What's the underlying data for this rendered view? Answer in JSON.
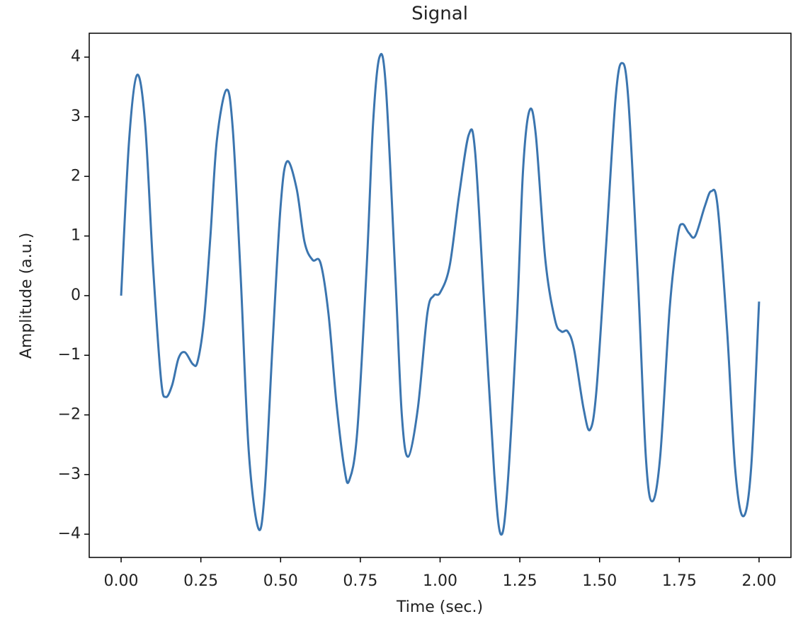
{
  "chart_data": {
    "type": "line",
    "title": "Signal",
    "x_label": "Time (sec.)",
    "y_label": "Amplitude (a.u.)",
    "x": [
      0.0,
      0.025,
      0.05,
      0.075,
      0.1,
      0.125,
      0.14,
      0.16,
      0.18,
      0.2,
      0.225,
      0.24,
      0.26,
      0.28,
      0.3,
      0.33,
      0.35,
      0.375,
      0.4,
      0.43,
      0.45,
      0.475,
      0.5,
      0.52,
      0.55,
      0.575,
      0.6,
      0.625,
      0.65,
      0.675,
      0.7,
      0.715,
      0.74,
      0.77,
      0.79,
      0.81,
      0.83,
      0.86,
      0.88,
      0.9,
      0.93,
      0.96,
      0.98,
      1.0,
      1.03,
      1.06,
      1.09,
      1.11,
      1.14,
      1.17,
      1.19,
      1.21,
      1.24,
      1.26,
      1.28,
      1.3,
      1.33,
      1.36,
      1.38,
      1.4,
      1.42,
      1.45,
      1.47,
      1.49,
      1.52,
      1.55,
      1.57,
      1.59,
      1.62,
      1.645,
      1.665,
      1.69,
      1.72,
      1.745,
      1.76,
      1.78,
      1.8,
      1.83,
      1.85,
      1.87,
      1.9,
      1.925,
      1.95,
      1.975,
      2.0
    ],
    "series": [
      {
        "name": "signal",
        "color": "#3b75af",
        "values": [
          0,
          2.6,
          3.7,
          2.9,
          0.5,
          -1.4,
          -1.7,
          -1.5,
          -1.05,
          -0.95,
          -1.15,
          -1.1,
          -0.4,
          1.0,
          2.6,
          3.45,
          2.8,
          0.3,
          -2.6,
          -3.9,
          -3.3,
          -0.8,
          1.5,
          2.25,
          1.8,
          0.9,
          0.6,
          0.55,
          -0.3,
          -1.8,
          -2.9,
          -3.1,
          -2.3,
          0.5,
          2.9,
          4.0,
          3.5,
          0.3,
          -2.0,
          -2.7,
          -1.9,
          -0.3,
          0.0,
          0.05,
          0.5,
          1.7,
          2.7,
          2.4,
          -0.3,
          -3.0,
          -4.0,
          -3.3,
          -0.5,
          2.1,
          3.1,
          2.7,
          0.6,
          -0.4,
          -0.6,
          -0.6,
          -0.9,
          -1.9,
          -2.25,
          -1.6,
          0.8,
          3.3,
          3.9,
          3.3,
          0.3,
          -2.7,
          -3.45,
          -2.7,
          -0.2,
          1.0,
          1.2,
          1.05,
          1.0,
          1.5,
          1.75,
          1.5,
          -0.6,
          -2.9,
          -3.7,
          -2.9,
          -0.1
        ]
      }
    ],
    "xlim": [
      -0.1,
      2.1
    ],
    "xticks": [
      {
        "value": 0,
        "label": "0.00"
      },
      {
        "value": 0.25,
        "label": "0.25"
      },
      {
        "value": 0.5,
        "label": "0.50"
      },
      {
        "value": 0.75,
        "label": "0.75"
      },
      {
        "value": 1,
        "label": "1.00"
      },
      {
        "value": 1.25,
        "label": "1.25"
      },
      {
        "value": 1.5,
        "label": "1.50"
      },
      {
        "value": 1.75,
        "label": "1.75"
      },
      {
        "value": 2,
        "label": "2.00"
      }
    ],
    "ylim": [
      -4.39,
      4.4
    ],
    "yticks": [
      {
        "value": -4,
        "label": "−4"
      },
      {
        "value": -3,
        "label": "−3"
      },
      {
        "value": -2,
        "label": "−2"
      },
      {
        "value": -1,
        "label": "−1"
      },
      0,
      1,
      2,
      3,
      4
    ]
  }
}
